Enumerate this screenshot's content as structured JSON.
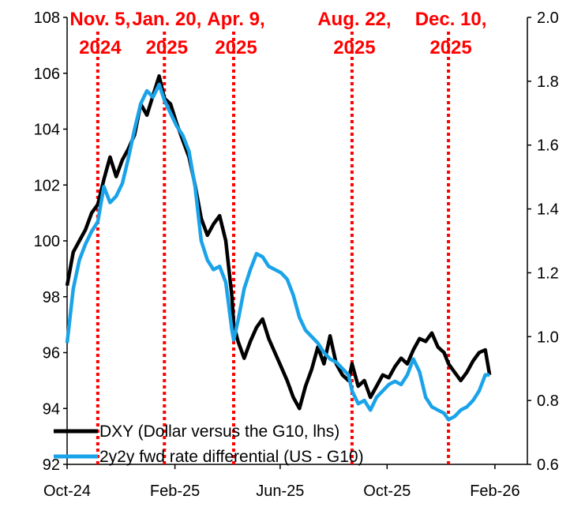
{
  "chart_data": {
    "type": "line",
    "x_range": [
      "2024-10-01",
      "2026-03-10"
    ],
    "y_left": {
      "range": [
        92,
        108
      ],
      "ticks": [
        92,
        94,
        96,
        98,
        100,
        102,
        104,
        106,
        108
      ]
    },
    "y_right": {
      "range": [
        0.6,
        2.0
      ],
      "ticks": [
        "0.6",
        "0.8",
        "1.0",
        "1.2",
        "1.4",
        "1.6",
        "1.8",
        "2.0"
      ]
    },
    "x_ticks": [
      {
        "date": "2024-10-01",
        "label": "Oct-24"
      },
      {
        "date": "2025-02-01",
        "label": "Feb-25"
      },
      {
        "date": "2025-06-01",
        "label": "Jun-25"
      },
      {
        "date": "2025-10-01",
        "label": "Oct-25"
      },
      {
        "date": "2026-02-01",
        "label": "Feb-26"
      }
    ],
    "grid": false,
    "legend_position": "bottom-left",
    "series": [
      {
        "name": "DXY (Dollar versus the G10, lhs)",
        "axis": "left",
        "color": "#000000",
        "points": [
          [
            "2024-10-01",
            98.4
          ],
          [
            "2024-10-08",
            99.6
          ],
          [
            "2024-10-15",
            100.0
          ],
          [
            "2024-10-22",
            100.4
          ],
          [
            "2024-10-29",
            101.0
          ],
          [
            "2024-11-05",
            101.3
          ],
          [
            "2024-11-12",
            102.2
          ],
          [
            "2024-11-19",
            103.0
          ],
          [
            "2024-11-26",
            102.3
          ],
          [
            "2024-12-03",
            102.9
          ],
          [
            "2024-12-10",
            103.3
          ],
          [
            "2024-12-17",
            103.8
          ],
          [
            "2024-12-24",
            104.9
          ],
          [
            "2024-12-31",
            104.5
          ],
          [
            "2025-01-07",
            105.2
          ],
          [
            "2025-01-14",
            105.9
          ],
          [
            "2025-01-20",
            105.1
          ],
          [
            "2025-01-27",
            104.9
          ],
          [
            "2025-02-03",
            104.2
          ],
          [
            "2025-02-10",
            103.6
          ],
          [
            "2025-02-17",
            103.0
          ],
          [
            "2025-02-24",
            102.0
          ],
          [
            "2025-03-03",
            100.8
          ],
          [
            "2025-03-10",
            100.2
          ],
          [
            "2025-03-17",
            100.6
          ],
          [
            "2025-03-24",
            100.9
          ],
          [
            "2025-03-31",
            100.0
          ],
          [
            "2025-04-07",
            98.0
          ],
          [
            "2025-04-09",
            97.0
          ],
          [
            "2025-04-14",
            96.4
          ],
          [
            "2025-04-21",
            95.8
          ],
          [
            "2025-04-28",
            96.4
          ],
          [
            "2025-05-05",
            96.9
          ],
          [
            "2025-05-12",
            97.2
          ],
          [
            "2025-05-19",
            96.5
          ],
          [
            "2025-05-26",
            96.0
          ],
          [
            "2025-06-02",
            95.5
          ],
          [
            "2025-06-09",
            95.0
          ],
          [
            "2025-06-16",
            94.4
          ],
          [
            "2025-06-23",
            94.0
          ],
          [
            "2025-06-30",
            94.8
          ],
          [
            "2025-07-07",
            95.4
          ],
          [
            "2025-07-14",
            96.2
          ],
          [
            "2025-07-21",
            95.6
          ],
          [
            "2025-07-28",
            96.6
          ],
          [
            "2025-08-04",
            95.6
          ],
          [
            "2025-08-11",
            95.2
          ],
          [
            "2025-08-18",
            95.0
          ],
          [
            "2025-08-22",
            95.6
          ],
          [
            "2025-08-29",
            94.8
          ],
          [
            "2025-09-05",
            95.0
          ],
          [
            "2025-09-12",
            94.4
          ],
          [
            "2025-09-19",
            94.8
          ],
          [
            "2025-09-26",
            95.2
          ],
          [
            "2025-10-03",
            95.1
          ],
          [
            "2025-10-10",
            95.5
          ],
          [
            "2025-10-17",
            95.8
          ],
          [
            "2025-10-24",
            95.6
          ],
          [
            "2025-10-31",
            96.1
          ],
          [
            "2025-11-07",
            96.5
          ],
          [
            "2025-11-14",
            96.4
          ],
          [
            "2025-11-21",
            96.7
          ],
          [
            "2025-11-28",
            96.2
          ],
          [
            "2025-12-05",
            96.0
          ],
          [
            "2025-12-10",
            95.6
          ],
          [
            "2025-12-17",
            95.3
          ],
          [
            "2025-12-24",
            95.0
          ],
          [
            "2025-12-31",
            95.3
          ],
          [
            "2026-01-07",
            95.7
          ],
          [
            "2026-01-14",
            96.0
          ],
          [
            "2026-01-21",
            96.1
          ],
          [
            "2026-01-26",
            95.2
          ]
        ]
      },
      {
        "name": "2y2y fwd rate differential (US - G10)",
        "axis": "right",
        "color": "#1aa3e8",
        "points": [
          [
            "2024-10-01",
            0.98
          ],
          [
            "2024-10-08",
            1.15
          ],
          [
            "2024-10-15",
            1.24
          ],
          [
            "2024-10-22",
            1.29
          ],
          [
            "2024-10-29",
            1.33
          ],
          [
            "2024-11-05",
            1.36
          ],
          [
            "2024-11-12",
            1.47
          ],
          [
            "2024-11-19",
            1.42
          ],
          [
            "2024-11-26",
            1.44
          ],
          [
            "2024-12-03",
            1.48
          ],
          [
            "2024-12-10",
            1.56
          ],
          [
            "2024-12-17",
            1.65
          ],
          [
            "2024-12-24",
            1.73
          ],
          [
            "2024-12-31",
            1.77
          ],
          [
            "2025-01-07",
            1.75
          ],
          [
            "2025-01-14",
            1.79
          ],
          [
            "2025-01-20",
            1.74
          ],
          [
            "2025-01-27",
            1.7
          ],
          [
            "2025-02-03",
            1.66
          ],
          [
            "2025-02-10",
            1.63
          ],
          [
            "2025-02-17",
            1.58
          ],
          [
            "2025-02-24",
            1.47
          ],
          [
            "2025-03-03",
            1.3
          ],
          [
            "2025-03-10",
            1.24
          ],
          [
            "2025-03-17",
            1.21
          ],
          [
            "2025-03-24",
            1.22
          ],
          [
            "2025-03-31",
            1.17
          ],
          [
            "2025-04-07",
            1.02
          ],
          [
            "2025-04-09",
            0.99
          ],
          [
            "2025-04-14",
            1.05
          ],
          [
            "2025-04-21",
            1.15
          ],
          [
            "2025-04-28",
            1.21
          ],
          [
            "2025-05-05",
            1.26
          ],
          [
            "2025-05-12",
            1.25
          ],
          [
            "2025-05-19",
            1.22
          ],
          [
            "2025-05-26",
            1.21
          ],
          [
            "2025-06-02",
            1.2
          ],
          [
            "2025-06-09",
            1.18
          ],
          [
            "2025-06-16",
            1.13
          ],
          [
            "2025-06-23",
            1.06
          ],
          [
            "2025-06-30",
            1.02
          ],
          [
            "2025-07-07",
            1.0
          ],
          [
            "2025-07-14",
            0.98
          ],
          [
            "2025-07-21",
            0.95
          ],
          [
            "2025-07-28",
            0.93
          ],
          [
            "2025-08-04",
            0.92
          ],
          [
            "2025-08-11",
            0.9
          ],
          [
            "2025-08-18",
            0.88
          ],
          [
            "2025-08-22",
            0.83
          ],
          [
            "2025-08-29",
            0.79
          ],
          [
            "2025-09-05",
            0.8
          ],
          [
            "2025-09-12",
            0.77
          ],
          [
            "2025-09-19",
            0.81
          ],
          [
            "2025-09-26",
            0.83
          ],
          [
            "2025-10-03",
            0.85
          ],
          [
            "2025-10-10",
            0.86
          ],
          [
            "2025-10-17",
            0.85
          ],
          [
            "2025-10-24",
            0.88
          ],
          [
            "2025-10-31",
            0.93
          ],
          [
            "2025-11-07",
            0.89
          ],
          [
            "2025-11-14",
            0.81
          ],
          [
            "2025-11-21",
            0.78
          ],
          [
            "2025-11-28",
            0.77
          ],
          [
            "2025-12-05",
            0.76
          ],
          [
            "2025-12-10",
            0.74
          ],
          [
            "2025-12-17",
            0.75
          ],
          [
            "2025-12-24",
            0.77
          ],
          [
            "2025-12-31",
            0.78
          ],
          [
            "2026-01-07",
            0.8
          ],
          [
            "2026-01-14",
            0.83
          ],
          [
            "2026-01-21",
            0.88
          ],
          [
            "2026-01-26",
            0.88
          ]
        ]
      }
    ],
    "annotations": [
      {
        "date": "2024-11-05",
        "line1": "Nov. 5,",
        "line2": "2024"
      },
      {
        "date": "2025-01-20",
        "line1": "Jan. 20,",
        "line2": "2025"
      },
      {
        "date": "2025-04-09",
        "line1": "Apr. 9,",
        "line2": "2025"
      },
      {
        "date": "2025-08-22",
        "line1": "Aug. 22,",
        "line2": "2025"
      },
      {
        "date": "2025-12-10",
        "line1": "Dec. 10,",
        "line2": "2025"
      }
    ],
    "annotation_color": "#ff0000"
  }
}
